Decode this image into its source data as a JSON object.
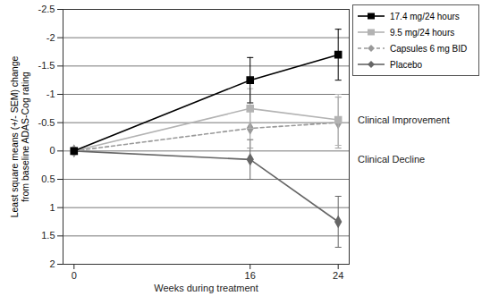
{
  "chart_data": {
    "type": "line",
    "x_label": "Weeks during treatment",
    "y_label": "Least square means (+/- SEM) change\nfrom baseline ADAS-Cog rating",
    "x": [
      0,
      16,
      24
    ],
    "xlim": [
      -1,
      25
    ],
    "xticks": [
      0,
      16,
      24
    ],
    "ylim": [
      2,
      -2.5
    ],
    "yticks": [
      -2.5,
      -2,
      -1.5,
      -1,
      -0.5,
      0,
      0.5,
      1,
      1.5,
      2
    ],
    "grid": true,
    "legend": "top-right",
    "annotations": [
      "Clinical Improvement",
      "Clinical Decline"
    ],
    "series": [
      {
        "name": "17.4 mg/24 hours",
        "color": "#000000",
        "marker": "square",
        "line_style": "solid",
        "values": [
          0,
          -1.25,
          -1.7
        ],
        "sem": [
          null,
          0.4,
          0.45
        ]
      },
      {
        "name": "9.5 mg/24 hours",
        "color": "#b3b3b3",
        "marker": "square",
        "line_style": "solid",
        "values": [
          0,
          -0.75,
          -0.55
        ],
        "sem": [
          null,
          0.35,
          0.45
        ]
      },
      {
        "name": "Capsules 6 mg BID",
        "color": "#999999",
        "marker": "diamond",
        "line_style": "dashed",
        "values": [
          0,
          -0.4,
          -0.5
        ],
        "sem": [
          null,
          0.35,
          0.45
        ]
      },
      {
        "name": "Placebo",
        "color": "#666666",
        "marker": "diamond",
        "line_style": "solid",
        "values": [
          0,
          0.15,
          1.25
        ],
        "sem": [
          null,
          0.35,
          0.45
        ]
      }
    ]
  }
}
